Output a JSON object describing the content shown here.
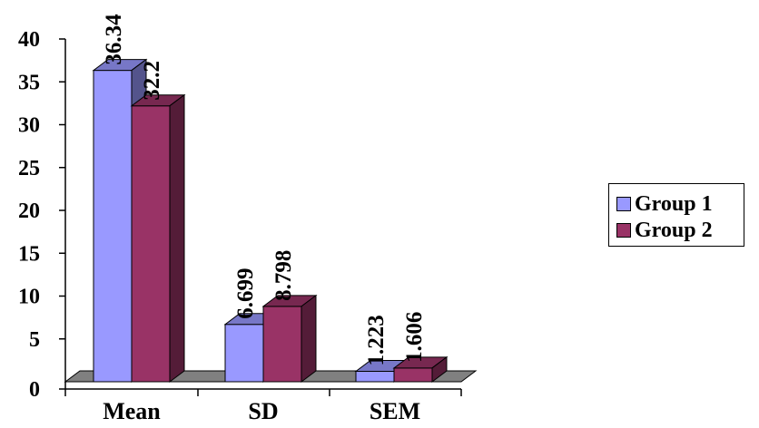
{
  "chart_data": {
    "type": "bar",
    "style": "3d-clustered-column",
    "categories": [
      "Mean",
      "SD",
      "SEM"
    ],
    "series": [
      {
        "name": "Group 1",
        "values": [
          36.34,
          6.699,
          1.223
        ],
        "value_labels": [
          "36.34",
          "6.699",
          "1.223"
        ],
        "color": "#9999ff"
      },
      {
        "name": "Group 2",
        "values": [
          32.2,
          8.798,
          1.606
        ],
        "value_labels": [
          "32.2",
          "8.798",
          "1.606"
        ],
        "color": "#993366"
      }
    ],
    "y_ticks": [
      "0",
      "5",
      "10",
      "15",
      "20",
      "25",
      "30",
      "35",
      "40"
    ],
    "ylim": [
      0,
      40
    ],
    "title": "",
    "xlabel": "",
    "ylabel": "",
    "grid": false,
    "legend_position": "right",
    "floor_color": "#808080"
  }
}
